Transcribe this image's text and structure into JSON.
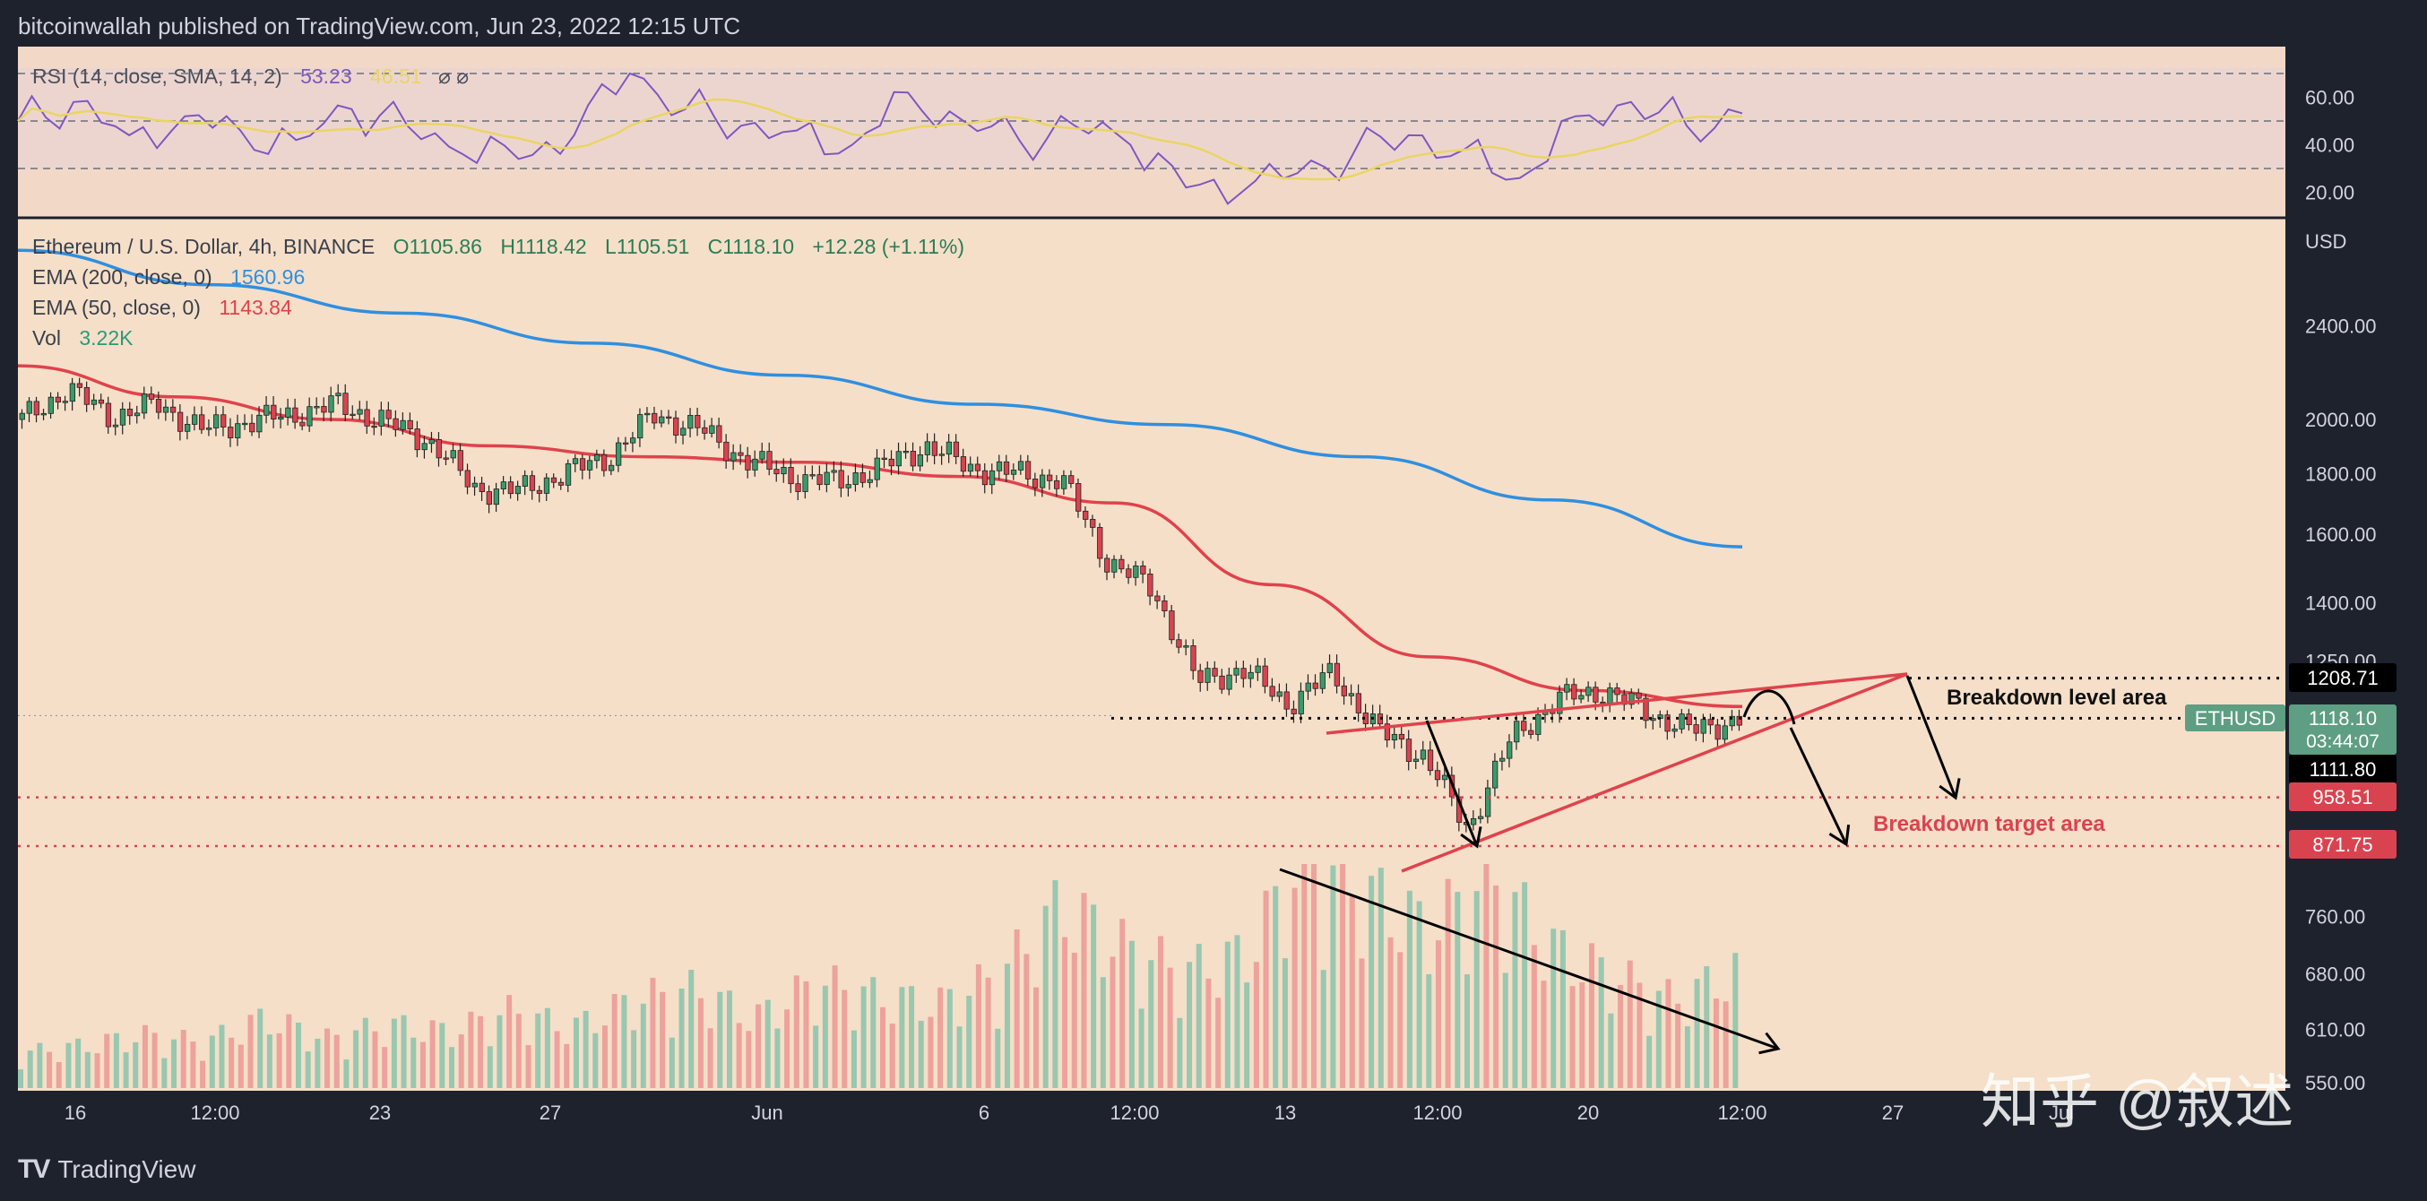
{
  "header": {
    "published": "bitcoinwallah published on TradingView.com, Jun 23, 2022 12:15 UTC"
  },
  "footer": {
    "brand": "TradingView",
    "watermark": "知乎 @叙述"
  },
  "rsi": {
    "legend_prefix": "RSI (14, close, SMA, 14, 2)",
    "value": "53.23",
    "value2": "46.51",
    "ticks": [
      "60.00",
      "40.00",
      "20.00"
    ],
    "bands": [
      70,
      50,
      30
    ]
  },
  "main": {
    "symbol_line": "Ethereum / U.S. Dollar, 4h, BINANCE",
    "ohlc": {
      "o": "O1105.86",
      "h": "H1118.42",
      "l": "L1105.51",
      "c": "C1118.10",
      "chg": "+12.28 (+1.11%)"
    },
    "ema200": {
      "label": "EMA (200, close, 0)",
      "value": "1560.96"
    },
    "ema50": {
      "label": "EMA (50, close, 0)",
      "value": "1143.84"
    },
    "vol": {
      "label": "Vol",
      "value": "3.22K"
    },
    "currency": "USD"
  },
  "annotations": {
    "breakdown_level": "Breakdown level area",
    "breakdown_target": "Breakdown target area"
  },
  "price_tags": {
    "level_top": "1208.71",
    "symbol": "ETHUSD",
    "current": "1118.10",
    "countdown": "03:44:07",
    "support": "1111.80",
    "target1": "958.51",
    "target2": "871.75"
  },
  "colors": {
    "bg": "#f5dfc8",
    "up": "#3a9a6b",
    "down": "#d9434f",
    "ema200": "#2f8fe0",
    "ema50": "#e0424c",
    "rsi": "#7e57c2",
    "rsi_sma": "#e9d565"
  },
  "chart_data": {
    "type": "candlestick",
    "title": "Ethereum / U.S. Dollar, 4h, BINANCE",
    "x_ticks": [
      "16",
      "12:00",
      "23",
      "27",
      "Jun",
      "6",
      "12:00",
      "13",
      "12:00",
      "20",
      "12:00",
      "27",
      "Jul"
    ],
    "y_ticks": [
      "2400.00",
      "2000.00",
      "1800.00",
      "1600.00",
      "1400.00",
      "1250.00",
      "760.00",
      "680.00",
      "610.00",
      "550.00"
    ],
    "y_scale": "log",
    "price_path": [
      2000,
      2120,
      2010,
      2060,
      1960,
      1990,
      2020,
      2060,
      1990,
      1920,
      1750,
      1740,
      1800,
      1860,
      2020,
      1960,
      1850,
      1790,
      1770,
      1820,
      1900,
      1820,
      1800,
      1780,
      1520,
      1440,
      1200,
      1230,
      1150,
      1220,
      1090,
      1040,
      900,
      1080,
      1160,
      1180,
      1130,
      1090,
      1118
    ],
    "ema200_path": [
      2780,
      2600,
      2460,
      2320,
      2180,
      2060,
      1980,
      1860,
      1710,
      1560.96
    ],
    "ema50_path": [
      2220,
      2090,
      2000,
      1900,
      1860,
      1840,
      1790,
      1700,
      1450,
      1260,
      1180,
      1143.84
    ],
    "levels": {
      "breakdown_level": 1208.71,
      "current": 1118.1,
      "support": 1111.8,
      "target1": 958.51,
      "target2": 871.75
    },
    "rsi_path": [
      50,
      58,
      44,
      52,
      46,
      42,
      55,
      48,
      36,
      34,
      44,
      70,
      55,
      48,
      46,
      40,
      62,
      50,
      42,
      48,
      40,
      22,
      20,
      28,
      36,
      44,
      38,
      26,
      52,
      58,
      48,
      53.23
    ],
    "volume_path": [
      1,
      1.2,
      1.5,
      1.3,
      2,
      1.4,
      1.8,
      1.6,
      2.2,
      1.7,
      2.5,
      2.8,
      2,
      3,
      2.6,
      2.4,
      3.2,
      5.2,
      4,
      3.3,
      3.8,
      6.6,
      5.5,
      4.5,
      6,
      4,
      3.2,
      2.5,
      3.3
    ]
  }
}
